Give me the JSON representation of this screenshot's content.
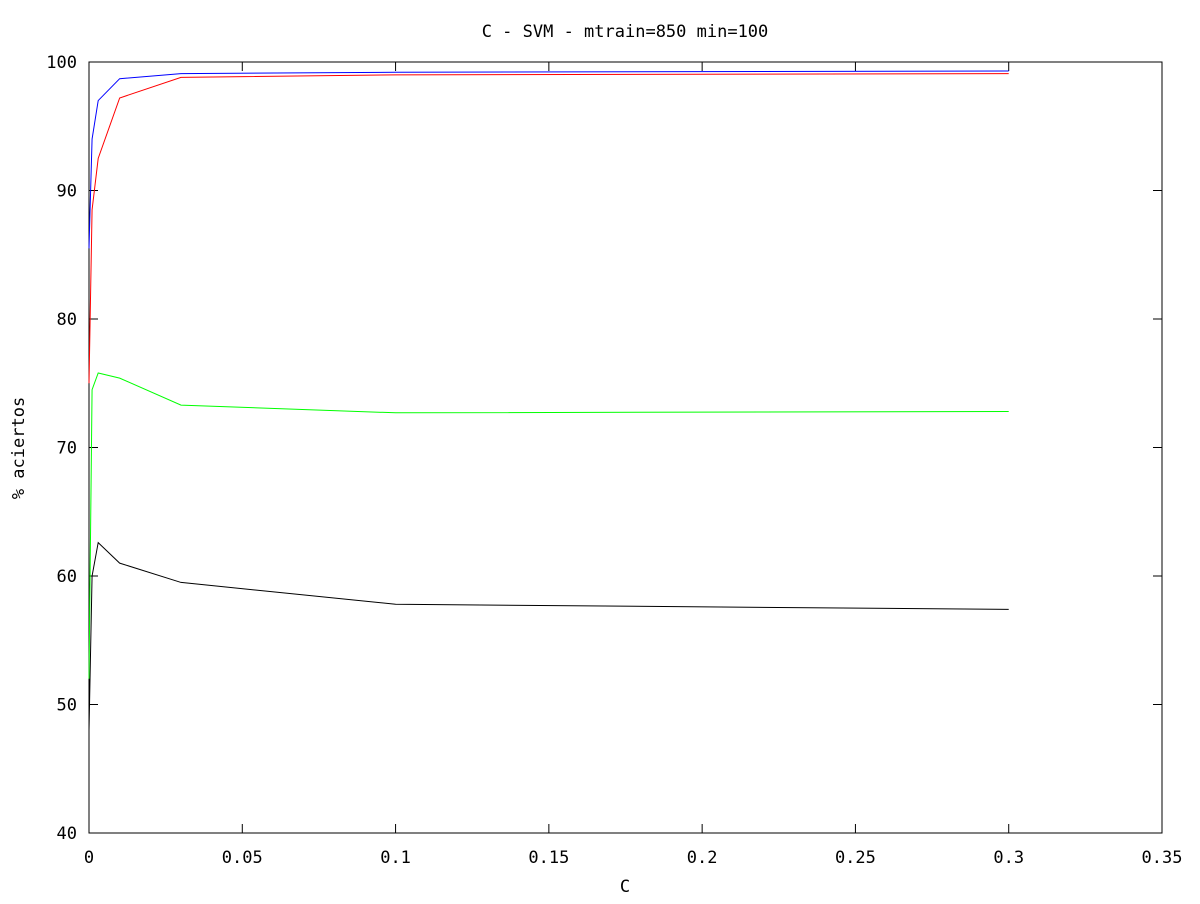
{
  "chart_data": {
    "type": "line",
    "title": "C - SVM - mtrain=850 min=100",
    "xlabel": "C",
    "ylabel": "% aciertos",
    "xlim": [
      0,
      0.35
    ],
    "ylim": [
      40,
      100
    ],
    "xticks": [
      0,
      0.05,
      0.1,
      0.15,
      0.2,
      0.25,
      0.3,
      0.35
    ],
    "xtick_labels": [
      "0",
      "0.05",
      "0.1",
      "0.15",
      "0.2",
      "0.25",
      "0.3",
      "0.35"
    ],
    "yticks": [
      40,
      50,
      60,
      70,
      80,
      90,
      100
    ],
    "ytick_labels": [
      "40",
      "50",
      "60",
      "70",
      "80",
      "90",
      "100"
    ],
    "grid": false,
    "legend": "none",
    "series": [
      {
        "color": "#0000ff",
        "x": [
          0,
          0.001,
          0.003,
          0.01,
          0.03,
          0.1,
          0.3
        ],
        "y": [
          85.5,
          94.0,
          97.0,
          98.7,
          99.1,
          99.2,
          99.3
        ]
      },
      {
        "color": "#ff0000",
        "x": [
          0,
          0.001,
          0.003,
          0.01,
          0.03,
          0.1,
          0.3
        ],
        "y": [
          75.0,
          88.5,
          92.5,
          97.2,
          98.8,
          99.0,
          99.1
        ]
      },
      {
        "color": "#00ff00",
        "x": [
          0,
          0.001,
          0.003,
          0.01,
          0.03,
          0.1,
          0.3
        ],
        "y": [
          52.0,
          74.5,
          75.8,
          75.4,
          73.3,
          72.7,
          72.8
        ]
      },
      {
        "color": "#000000",
        "x": [
          0,
          0.001,
          0.003,
          0.01,
          0.03,
          0.1,
          0.3
        ],
        "y": [
          48.0,
          60.0,
          62.6,
          61.0,
          59.5,
          57.8,
          57.4
        ]
      }
    ]
  }
}
